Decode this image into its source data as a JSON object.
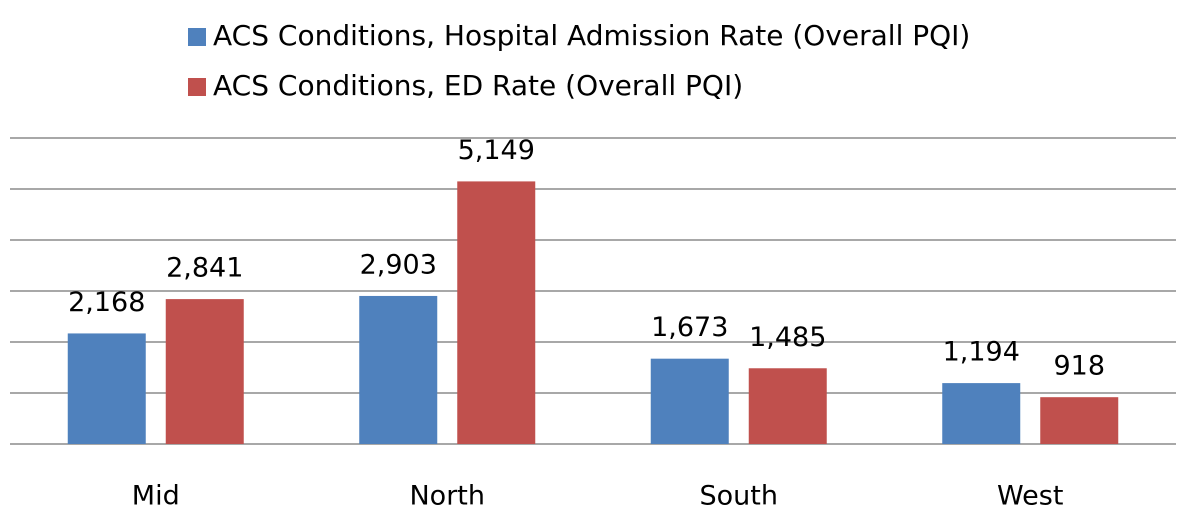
{
  "chart_data": {
    "type": "bar",
    "categories": [
      "Mid",
      "North",
      "South",
      "West"
    ],
    "series": [
      {
        "name": "ACS Conditions, Hospital Admission Rate (Overall PQI)",
        "color": "#4f81bd",
        "values": [
          2168,
          2903,
          1673,
          1194
        ],
        "value_labels": [
          "2,168",
          "2,903",
          "1,673",
          "1,194"
        ]
      },
      {
        "name": "ACS Conditions, ED Rate (Overall PQI)",
        "color": "#c0504d",
        "values": [
          2841,
          5149,
          1485,
          918
        ],
        "value_labels": [
          "2,841",
          "5,149",
          "1,485",
          "918"
        ]
      }
    ],
    "ylim": [
      0,
      6000
    ],
    "yticks": [
      0,
      1000,
      2000,
      3000,
      4000,
      5000,
      6000
    ],
    "grid": true,
    "legend": "top"
  }
}
